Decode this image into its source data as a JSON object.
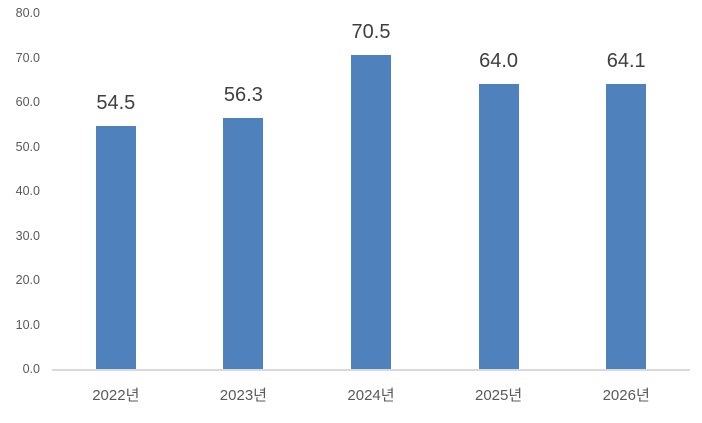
{
  "chart_data": {
    "type": "bar",
    "title": "",
    "xlabel": "",
    "ylabel": "",
    "categories": [
      "2022년",
      "2023년",
      "2024년",
      "2025년",
      "2026년"
    ],
    "values": [
      54.5,
      56.3,
      70.5,
      64.0,
      64.1
    ],
    "value_labels": [
      "54.5",
      "56.3",
      "70.5",
      "64.0",
      "64.1"
    ],
    "y_tick_labels": [
      "0.0",
      "10.0",
      "20.0",
      "30.0",
      "40.0",
      "50.0",
      "60.0",
      "70.0",
      "80.0"
    ],
    "y_tick_values": [
      0,
      10,
      20,
      30,
      40,
      50,
      60,
      70,
      80
    ],
    "ylim": [
      0,
      80
    ],
    "grid": false,
    "legend": false,
    "colors": {
      "bar": "#4f81bd",
      "axis_line": "#d9d9d9",
      "tick_label": "#595959",
      "value_label": "#3f3f3f",
      "background": "#ffffff"
    }
  }
}
